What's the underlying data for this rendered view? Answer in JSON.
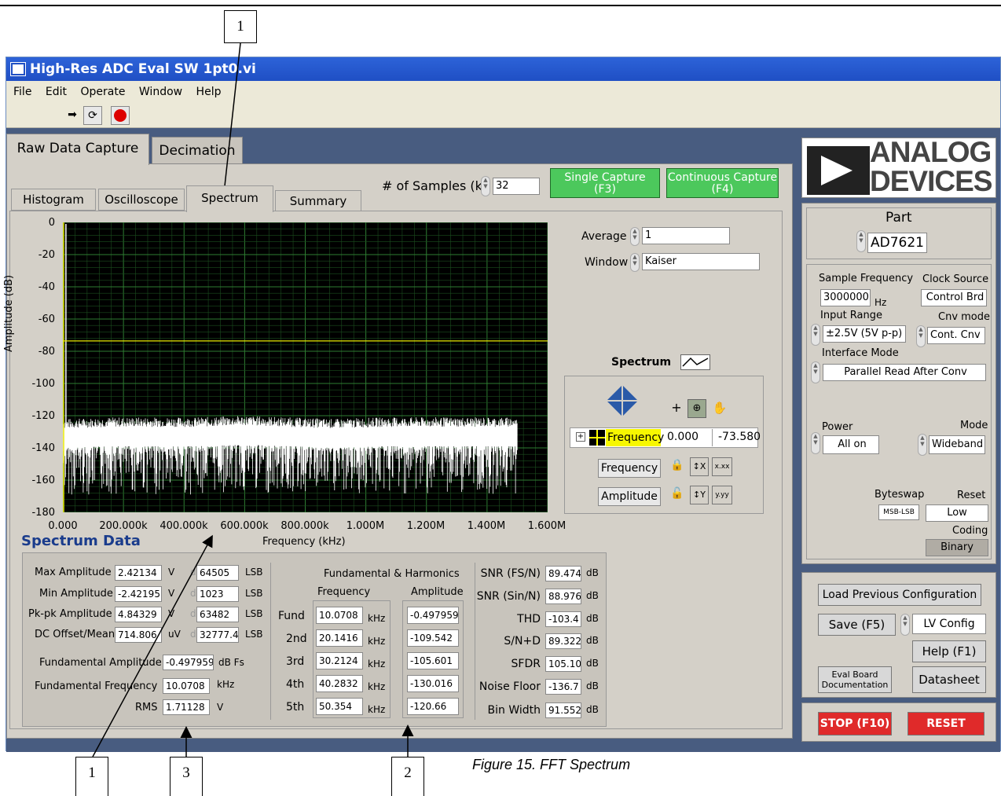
{
  "window": {
    "title": "High-Res ADC Eval SW 1pt0.vi",
    "menu": [
      "File",
      "Edit",
      "Operate",
      "Window",
      "Help"
    ]
  },
  "main_tabs": [
    "Raw Data Capture",
    "Decimation"
  ],
  "sub_tabs": [
    "Histogram",
    "Oscilloscope",
    "Spectrum",
    "Summary"
  ],
  "samples": {
    "label": "# of Samples (k)",
    "value": "32"
  },
  "capture": {
    "single_label": "Single Capture\n(F3)",
    "continuous_label": "Continuous Capture\n(F4)"
  },
  "plot": {
    "ylabel": "Amplitude (dB)",
    "xlabel": "Frequency (kHz)",
    "yticks": [
      "0",
      "-20",
      "-40",
      "-60",
      "-80",
      "-100",
      "-120",
      "-140",
      "-160",
      "-180"
    ],
    "xticks": [
      "0.000",
      "200.000k",
      "400.000k",
      "600.000k",
      "800.000k",
      "1.000M",
      "1.200M",
      "1.400M",
      "1.600M"
    ]
  },
  "chart_data": {
    "type": "line",
    "xlabel": "Frequency (kHz)",
    "ylabel": "Amplitude (dB)",
    "xlim": [
      0,
      1600000
    ],
    "ylim": [
      -180,
      0
    ],
    "grid": true,
    "series": [
      {
        "x": [
          0,
          150000,
          300000,
          450000,
          600000,
          750000,
          900000,
          1050000,
          1200000,
          1350000,
          1500000
        ],
        "y": [
          -132,
          -131,
          -131,
          -131,
          -130,
          -131,
          -132,
          -131,
          -131,
          -131,
          -131
        ]
      },
      {
        "x": [
          0,
          1600000
        ],
        "y": [
          -73.58,
          -73.58
        ]
      }
    ]
  },
  "spectrum_controls": {
    "average_label": "Average",
    "average_value": "1",
    "window_label": "Window",
    "window_value": "Kaiser",
    "spectrum_label": "Spectrum",
    "cursor_name": "Frequency",
    "cursor_x": "0.000",
    "cursor_y": "-73.580",
    "frequency_axis": "Frequency",
    "amplitude_axis": "Amplitude",
    "format_x": "x.xx",
    "format_y": "y.yy"
  },
  "spectrum_data": {
    "title": "Spectrum Data",
    "rows": [
      {
        "label": "Max Amplitude",
        "value": "2.42134",
        "unit": "V",
        "code": "64505",
        "code_unit": "LSB"
      },
      {
        "label": "Min Amplitude",
        "value": "-2.42195",
        "unit": "V",
        "code": "1023",
        "code_unit": "LSB"
      },
      {
        "label": "Pk-pk Amplitude",
        "value": "4.84329",
        "unit": "V",
        "code": "63482",
        "code_unit": "LSB"
      },
      {
        "label": "DC Offset/Mean",
        "value": "714.806",
        "unit": "uV",
        "code": "32777.4",
        "code_unit": "LSB"
      }
    ],
    "fund_amp_label": "Fundamental Amplitude",
    "fund_amp_value": "-0.497959",
    "fund_amp_unit": "dB Fs",
    "fund_freq_label": "Fundamental Frequency",
    "fund_freq_value": "10.0708",
    "fund_freq_unit": "kHz",
    "rms_label": "RMS",
    "rms_value": "1.71128",
    "rms_unit": "V",
    "d_prefix": "d"
  },
  "harmonics": {
    "title": "Fundamental & Harmonics",
    "freq_header": "Frequency",
    "amp_header": "Amplitude",
    "unit": "kHz",
    "rows": [
      {
        "label": "Fund",
        "freq": "10.0708",
        "amp": "-0.497959"
      },
      {
        "label": "2nd",
        "freq": "20.1416",
        "amp": "-109.542"
      },
      {
        "label": "3rd",
        "freq": "30.2124",
        "amp": "-105.601"
      },
      {
        "label": "4th",
        "freq": "40.2832",
        "amp": "-130.016"
      },
      {
        "label": "5th",
        "freq": "50.354",
        "amp": "-120.66"
      }
    ]
  },
  "metrics": [
    {
      "label": "SNR (FS/N)",
      "value": "89.474",
      "unit": "dB"
    },
    {
      "label": "SNR (Sin/N)",
      "value": "88.976",
      "unit": "dB"
    },
    {
      "label": "THD",
      "value": "-103.4",
      "unit": "dB"
    },
    {
      "label": "S/N+D",
      "value": "89.322",
      "unit": "dB"
    },
    {
      "label": "SFDR",
      "value": "105.10",
      "unit": "dB"
    },
    {
      "label": "Noise Floor",
      "value": "-136.7",
      "unit": "dB"
    },
    {
      "label": "Bin Width",
      "value": "91.552",
      "unit": "dB"
    }
  ],
  "logo": {
    "line1": "ANALOG",
    "line2": "DEVICES"
  },
  "part": {
    "label": "Part",
    "value": "AD7621"
  },
  "config": {
    "sample_freq_label": "Sample Frequency",
    "sample_freq_value": "3000000",
    "sample_freq_unit": "Hz",
    "clock_source_label": "Clock Source",
    "clock_source_value": "Control Brd",
    "input_range_label": "Input Range",
    "input_range_value": "±2.5V (5V p-p)",
    "cnv_mode_label": "Cnv mode",
    "cnv_mode_value": "Cont. Cnv",
    "interface_mode_label": "Interface Mode",
    "interface_mode_value": "Parallel Read After Conv",
    "power_label": "Power",
    "power_value": "All on",
    "mode_label": "Mode",
    "mode_value": "Wideband",
    "byteswap_label": "Byteswap",
    "byteswap_value": "MSB-LSB",
    "reset_label": "Reset",
    "reset_value": "Low",
    "coding_label": "Coding",
    "coding_value": "Binary"
  },
  "buttons": {
    "load_prev": "Load Previous Configuration",
    "save": "Save (F5)",
    "lv_config": "LV Config",
    "help": "Help (F1)",
    "eval_doc": "Eval Board\nDocumentation",
    "datasheet": "Datasheet",
    "stop": "STOP (F10)",
    "reset": "RESET"
  },
  "callouts": [
    "1",
    "1",
    "3",
    "2"
  ],
  "caption": "Figure 15. FFT Spectrum"
}
